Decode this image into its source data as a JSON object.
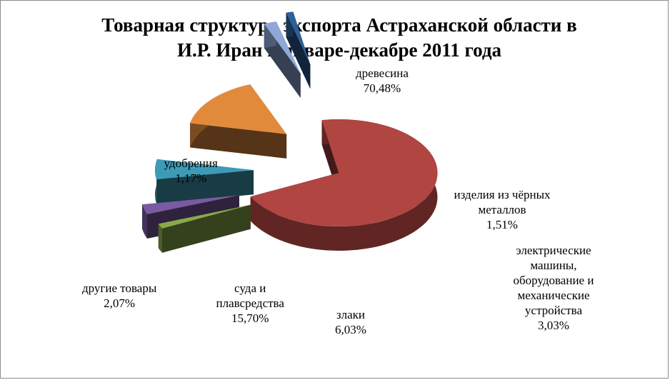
{
  "title": {
    "line1": "Товарная структура экспорта Астраханской области в",
    "line2": "И.Р. Иран в январе-декабре 2011 года"
  },
  "chart_data": {
    "type": "pie",
    "exploded": true,
    "three_d": true,
    "legend": "none",
    "slices": [
      {
        "name_lines": [
          "древесина"
        ],
        "pct_label": "70,48%",
        "value": 70.48,
        "color": "#b04542"
      },
      {
        "name_lines": [
          "изделия из чёрных",
          "металлов"
        ],
        "pct_label": "1,51%",
        "value": 1.51,
        "color": "#8aaa4a"
      },
      {
        "name_lines": [
          "электрические",
          "машины,",
          "оборудование и",
          "механические",
          "устройства"
        ],
        "pct_label": "3,03%",
        "value": 3.03,
        "color": "#7a5aa0"
      },
      {
        "name_lines": [
          "злаки"
        ],
        "pct_label": "6,03%",
        "value": 6.03,
        "color": "#3e9bb6"
      },
      {
        "name_lines": [
          "суда и",
          "плавсредства"
        ],
        "pct_label": "15,70%",
        "value": 15.7,
        "color": "#e28a3c"
      },
      {
        "name_lines": [
          "другие товары"
        ],
        "pct_label": "2,07%",
        "value": 2.07,
        "color": "#8fa8d8"
      },
      {
        "name_lines": [
          "удобрения"
        ],
        "pct_label": "1,17%",
        "value": 1.17,
        "color": "#2f5f9a"
      }
    ]
  }
}
